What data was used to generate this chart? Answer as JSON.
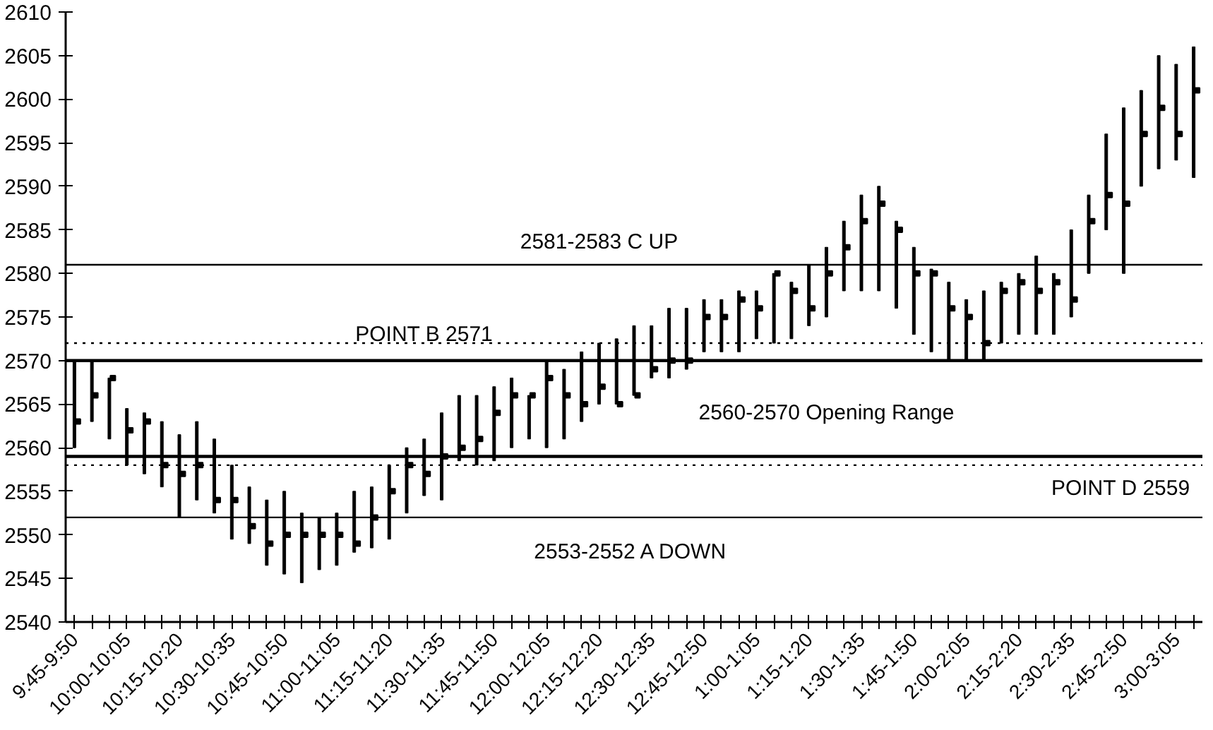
{
  "chart_data": {
    "type": "bar",
    "categories": [
      "9:45-9:50",
      null,
      null,
      "10:00-10:05",
      null,
      null,
      "10:15-10:20",
      null,
      null,
      "10:30-10:35",
      null,
      null,
      "10:45-10:50",
      null,
      null,
      "11:00-11:05",
      null,
      null,
      "11:15-11:20",
      null,
      null,
      "11:30-11:35",
      null,
      null,
      "11:45-11:50",
      null,
      null,
      "12:00-12:05",
      null,
      null,
      "12:15-12:20",
      null,
      null,
      "12:30-12:35",
      null,
      null,
      "12:45-12:50",
      null,
      null,
      "1:00-1:05",
      null,
      null,
      "1:15-1:20",
      null,
      null,
      "1:30-1:35",
      null,
      null,
      "1:45-1:50",
      null,
      null,
      "2:00-2:05",
      null,
      null,
      "2:15-2:20",
      null,
      null,
      "2:30-2:35",
      null,
      null,
      "2:45-2:50",
      null,
      null,
      "3:00-3:05",
      null
    ],
    "series": [
      {
        "color": "#000000",
        "base": [
          2560,
          2563,
          2561,
          2558,
          2557,
          2555.5,
          2552,
          2554,
          2552.5,
          2549.5,
          2549,
          2546.5,
          2545.5,
          2544.5,
          2546,
          2546.5,
          2548,
          2548.5,
          2549.5,
          2552.5,
          2554.5,
          2554,
          2558.5,
          2558,
          2558.5,
          2560,
          2561,
          2560,
          2561,
          2563,
          2565,
          2565,
          2566,
          2568,
          2568,
          2569,
          2571,
          2571,
          2571,
          2572.5,
          2572,
          2572.5,
          2574,
          2575,
          2578,
          2578,
          2578,
          2576,
          2573,
          2571,
          2570,
          2570,
          2570,
          2572,
          2573,
          2573,
          2573,
          2575,
          2580,
          2585,
          2580,
          2590,
          2592,
          2593,
          2591
        ],
        "values": [
          10,
          7,
          7,
          6.5,
          7,
          7.5,
          9.5,
          9,
          8.5,
          8.5,
          6.5,
          7.5,
          9.5,
          8,
          6,
          6,
          7,
          7,
          8.5,
          7.5,
          6.5,
          10,
          7.5,
          8,
          8.5,
          8,
          5,
          10,
          8,
          8,
          7,
          7.5,
          8,
          6,
          8,
          7,
          6,
          6,
          7,
          5.5,
          8,
          6.5,
          7,
          8,
          8,
          11,
          12,
          10,
          10,
          9.5,
          9,
          7,
          8,
          7,
          7,
          9,
          7,
          10,
          9,
          11,
          19,
          11,
          13,
          11,
          15
        ]
      },
      {
        "type": "scatter",
        "color": "#000000",
        "marker": "square",
        "values": [
          2563,
          2566,
          2568,
          2562,
          2563,
          2558,
          2557,
          2558,
          2554,
          2554,
          2551,
          2549,
          2550,
          2550,
          2550,
          2550,
          2549,
          2552,
          2555,
          2558,
          2557,
          2559,
          2560,
          2561,
          2564,
          2566,
          2566,
          2568,
          2566,
          2565,
          2567,
          2565,
          2566,
          2569,
          2570,
          2570,
          2575,
          2575,
          2577,
          2576,
          2580,
          2578,
          2576,
          2580,
          2583,
          2586,
          2588,
          2585,
          2580,
          2580,
          2576,
          2575,
          2572,
          2578,
          2579,
          2578,
          2579,
          2577,
          2586,
          2589,
          2588,
          2596,
          2599,
          2596,
          2601
        ]
      }
    ],
    "ylim": [
      2540,
      2610
    ],
    "yticks": [
      2540,
      2545,
      2550,
      2555,
      2560,
      2565,
      2570,
      2575,
      2580,
      2585,
      2590,
      2595,
      2600,
      2605,
      2610
    ],
    "grid": false,
    "ref_lines": [
      {
        "axis": "y",
        "value": 2581,
        "label": "2581-2583 C UP",
        "line_style": "solid",
        "color": "#000000"
      },
      {
        "axis": "y",
        "value": 2572,
        "label": "POINT B 2571",
        "line_style": "dotted",
        "color": "#000000"
      },
      {
        "axis": "y",
        "value": 2570,
        "label": "2560-2570 Opening Range",
        "line_style": "solid",
        "color": "#000000"
      },
      {
        "axis": "y",
        "value": 2559,
        "line_style": "solid",
        "color": "#000000"
      },
      {
        "axis": "y",
        "value": 2558,
        "label": "POINT D 2559",
        "line_style": "dotted",
        "color": "#000000"
      },
      {
        "axis": "y",
        "value": 2552,
        "label": "2553-2552  A DOWN",
        "line_style": "solid",
        "color": "#000000"
      }
    ]
  }
}
